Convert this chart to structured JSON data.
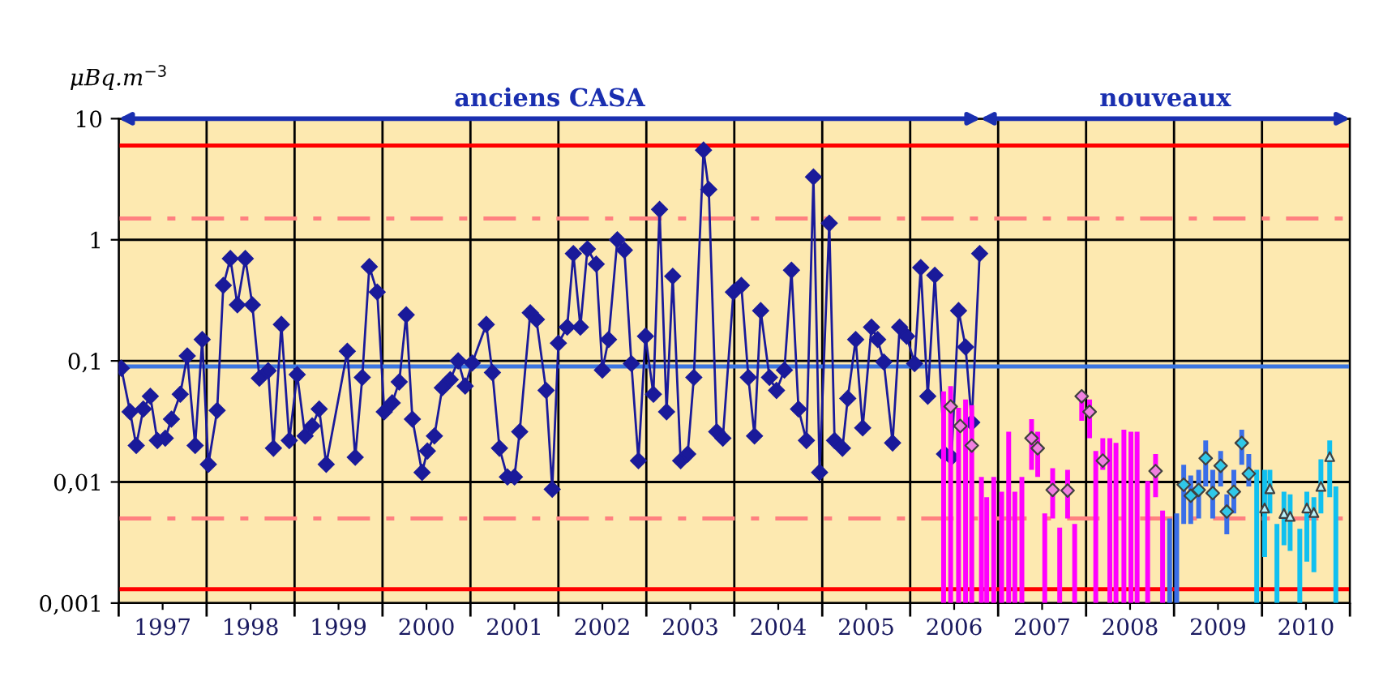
{
  "chart_data": {
    "type": "line",
    "ylabel": "μBq.m$^{−3}$",
    "annotations": [
      "anciens CASA",
      "nouveaux"
    ],
    "log": "y",
    "grid": true,
    "xlim": [
      1996.5,
      2010.5
    ],
    "xticks": [
      1997,
      1998,
      1999,
      2000,
      2001,
      2002,
      2003,
      2004,
      2005,
      2006,
      2007,
      2008,
      2009,
      2010
    ],
    "ylim": [
      0.001,
      10
    ],
    "yticks": [
      {
        "value": 0.001,
        "label": "0,001"
      },
      {
        "value": 0.01,
        "label": "0,01"
      },
      {
        "value": 0.1,
        "label": "0,1"
      },
      1,
      10
    ],
    "ref_lines": [
      {
        "axis": "y",
        "value": 6,
        "label": null,
        "color": "#ff0000",
        "line_style": "solid"
      },
      {
        "axis": "y",
        "value": 1.5,
        "label": null,
        "color": "#ff8080",
        "line_style": "dashdot"
      },
      {
        "axis": "y",
        "value": 0.09,
        "label": null,
        "color": "#3a75e0",
        "line_style": "solid"
      },
      {
        "axis": "y",
        "value": 0.005,
        "label": null,
        "color": "#ff8080",
        "line_style": "dashdot"
      },
      {
        "axis": "y",
        "value": 0.0013,
        "label": null,
        "color": "#ff0000",
        "line_style": "solid"
      }
    ],
    "series": [
      {
        "color": "#1a1a9a",
        "marker": "diamond",
        "line_style": "solid",
        "x": [
          1996.53,
          1996.63,
          1996.7,
          1996.78,
          1996.86,
          1996.94,
          1997.03,
          1997.1,
          1997.2,
          1997.28,
          1997.37,
          1997.45,
          1997.52,
          1997.62,
          1997.69,
          1997.77,
          1997.85,
          1997.94,
          1998.02,
          1998.1,
          1998.2,
          1998.26,
          1998.35,
          1998.44,
          1998.53,
          1998.62,
          1998.7,
          1998.78,
          1998.86,
          1999.1,
          1999.19,
          1999.27,
          1999.35,
          1999.44,
          1999.52,
          1999.61,
          1999.69,
          1999.77,
          1999.84,
          1999.95,
          2000.01,
          2000.09,
          2000.18,
          2000.27,
          2000.36,
          2000.44,
          2000.52,
          2000.68,
          2000.75,
          2000.83,
          2000.92,
          2001.0,
          2001.06,
          2001.18,
          2001.25,
          2001.36,
          2001.43,
          2001.5,
          2001.6,
          2001.67,
          2001.75,
          2001.83,
          2001.93,
          2002.0,
          2002.07,
          2002.17,
          2002.25,
          2002.33,
          2002.41,
          2002.49,
          2002.58,
          2002.65,
          2002.73,
          2002.8,
          2002.89,
          2002.97,
          2003.04,
          2003.15,
          2003.21,
          2003.3,
          2003.37,
          2003.49,
          2003.58,
          2003.66,
          2003.73,
          2003.8,
          2003.9,
          2003.98,
          2004.07,
          2004.15,
          2004.23,
          2004.32,
          2004.4,
          2004.47,
          2004.58,
          2004.64,
          2004.73,
          2004.79,
          2004.88,
          2004.96,
          2005.06,
          2005.13,
          2005.2,
          2005.3,
          2005.38,
          2005.46,
          2005.55,
          2005.62,
          2005.7,
          2005.78,
          2005.89,
          2005.97,
          2006.05,
          2006.13,
          2006.2,
          2006.29
        ],
        "values": [
          0.087,
          0.038,
          0.02,
          0.04,
          0.051,
          0.022,
          0.023,
          0.033,
          0.053,
          0.11,
          0.02,
          0.15,
          0.014,
          0.039,
          0.42,
          0.7,
          0.29,
          0.7,
          0.29,
          0.072,
          0.083,
          0.019,
          0.2,
          0.022,
          0.077,
          0.024,
          0.029,
          0.04,
          0.014,
          0.12,
          0.016,
          0.073,
          0.6,
          0.37,
          0.038,
          0.045,
          0.067,
          0.24,
          0.033,
          0.012,
          0.018,
          0.024,
          0.06,
          0.07,
          0.1,
          0.062,
          0.096,
          0.2,
          0.08,
          0.019,
          0.011,
          0.011,
          0.026,
          0.25,
          0.22,
          0.057,
          0.0087,
          0.14,
          0.19,
          0.77,
          0.19,
          0.84,
          0.63,
          0.084,
          0.15,
          1.0,
          0.82,
          0.095,
          0.015,
          0.16,
          0.053,
          1.78,
          0.038,
          0.5,
          0.015,
          0.017,
          0.073,
          5.5,
          2.6,
          0.026,
          0.023,
          0.37,
          0.42,
          0.073,
          0.024,
          0.26,
          0.073,
          0.057,
          0.084,
          0.56,
          0.04,
          0.022,
          3.3,
          0.012,
          1.37,
          0.022,
          0.019,
          0.049,
          0.15,
          0.028,
          0.19,
          0.15,
          0.098,
          0.021,
          0.19,
          0.16,
          0.095,
          0.59,
          0.051,
          0.51,
          0.017,
          0.016,
          0.26,
          0.13,
          0.031,
          0.77
        ]
      },
      {
        "type": "bar",
        "color": "#ff00ff",
        "x": [
          2005.88,
          2005.96,
          2006.05,
          2006.13,
          2006.2,
          2006.31,
          2006.37,
          2006.45,
          2006.54,
          2006.62,
          2006.69,
          2006.77,
          2006.88,
          2006.95,
          2007.03,
          2007.12,
          2007.2,
          2007.29,
          2007.37,
          2007.45,
          2007.54,
          2007.61,
          2007.69,
          2007.77,
          2007.84,
          2007.93,
          2008.01,
          2008.08,
          2008.2,
          2008.29,
          2008.37
        ],
        "base": [
          0.001,
          0.001,
          0.001,
          0.001,
          0.001,
          0.001,
          0.001,
          0.001,
          0.001,
          0.001,
          0.001,
          0.001,
          0.0126,
          0.011,
          0.001,
          0.005,
          0.001,
          0.005,
          0.001,
          0.032,
          0.023,
          0.001,
          0.0126,
          0.001,
          0.001,
          0.001,
          0.001,
          0.001,
          0.001,
          0.0075,
          0.001
        ],
        "values": [
          0.055,
          0.061,
          0.04,
          0.047,
          0.042,
          0.01,
          0.0065,
          0.01,
          0.0073,
          0.025,
          0.0073,
          0.01,
          0.0204,
          0.015,
          0.0045,
          0.008,
          0.0032,
          0.0076,
          0.0035,
          0.024,
          0.025,
          0.017,
          0.0104,
          0.022,
          0.02,
          0.026,
          0.025,
          0.025,
          0.0092,
          0.0095,
          0.0048
        ]
      },
      {
        "type": "scatter",
        "color": "#f080e0",
        "marker": "diamond",
        "x": [
          2005.96,
          2006.07,
          2006.2,
          2006.88,
          2006.95,
          2007.12,
          2007.29,
          2007.45,
          2007.54,
          2007.69,
          2008.29
        ],
        "values": [
          0.042,
          0.029,
          0.02,
          0.023,
          0.019,
          0.0086,
          0.0085,
          0.051,
          0.038,
          0.015,
          0.0123
        ]
      },
      {
        "type": "bar",
        "color": "#3a6ee8",
        "x": [
          2008.45,
          2008.53,
          2008.61,
          2008.69,
          2008.78,
          2008.86,
          2008.94,
          2009.03,
          2009.1,
          2009.18,
          2009.27,
          2009.35
        ],
        "base": [
          0.001,
          0.001,
          0.0045,
          0.0045,
          0.005,
          0.0092,
          0.005,
          0.0092,
          0.0037,
          0.0055,
          0.0139,
          0.0092
        ],
        "values": [
          0.004,
          0.0045,
          0.0094,
          0.0068,
          0.0076,
          0.0128,
          0.0076,
          0.0088,
          0.0042,
          0.0071,
          0.0131,
          0.0078
        ]
      },
      {
        "type": "scatter",
        "color": "#30c8e8",
        "marker": "diamond",
        "x": [
          2008.61,
          2008.69,
          2008.78,
          2008.86,
          2008.94,
          2009.03,
          2009.1,
          2009.18,
          2009.27,
          2009.35
        ],
        "values": [
          0.0095,
          0.0077,
          0.0086,
          0.0157,
          0.0081,
          0.0136,
          0.0057,
          0.0083,
          0.021,
          0.0117
        ]
      },
      {
        "type": "bar",
        "color": "#10c0f0",
        "x": [
          2009.44,
          2009.53,
          2009.59,
          2009.67,
          2009.75,
          2009.82,
          2009.93,
          2010.01,
          2010.09,
          2010.17,
          2010.27,
          2010.34
        ],
        "base": [
          0.001,
          0.0024,
          0.0055,
          0.001,
          0.003,
          0.0027,
          0.001,
          0.0022,
          0.0018,
          0.0055,
          0.0075,
          0.001
        ],
        "values": [
          0.0116,
          0.0102,
          0.0071,
          0.0035,
          0.0053,
          0.0052,
          0.0031,
          0.0061,
          0.0057,
          0.0099,
          0.0145,
          0.0082
        ]
      },
      {
        "type": "scatter",
        "color": "#b8f0fa",
        "marker": "triangle",
        "x": [
          2009.53,
          2009.59,
          2009.75,
          2009.82,
          2010.01,
          2010.09,
          2010.17,
          2010.27
        ],
        "values": [
          0.0061,
          0.0088,
          0.0055,
          0.0052,
          0.0061,
          0.0056,
          0.0092,
          0.0162
        ]
      }
    ]
  }
}
